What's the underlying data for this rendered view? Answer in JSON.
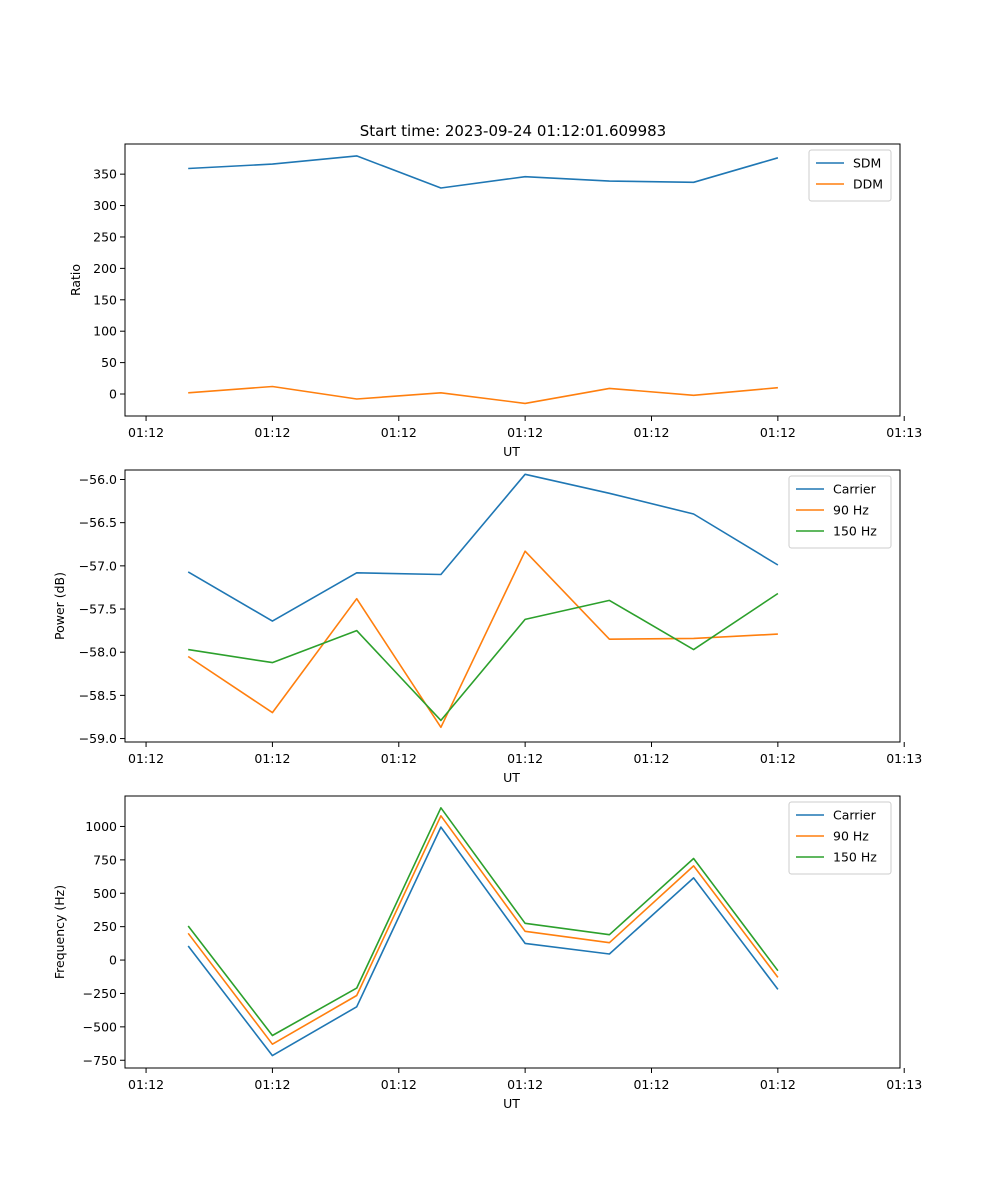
{
  "figure": {
    "title": "Start time: 2023-09-24 01:12:01.609983"
  },
  "chart_data": [
    {
      "type": "line",
      "ylabel": "Ratio",
      "xlabel": "UT",
      "x_tick_labels": [
        "01:12",
        "01:12",
        "01:12",
        "01:12",
        "01:12",
        "01:12",
        "01:13"
      ],
      "y_ticks": [
        0,
        50,
        100,
        150,
        200,
        250,
        300,
        350
      ],
      "ylim": [
        -35,
        398
      ],
      "legend_position": "upper right",
      "series": [
        {
          "name": "SDM",
          "color": "#1f77b4",
          "values": [
            359,
            366,
            379,
            328,
            346,
            339,
            337,
            376
          ]
        },
        {
          "name": "DDM",
          "color": "#ff7f0e",
          "values": [
            2,
            12,
            -8,
            2,
            -15,
            9,
            -2,
            10
          ]
        }
      ]
    },
    {
      "type": "line",
      "ylabel": "Power (dB)",
      "xlabel": "UT",
      "x_tick_labels": [
        "01:12",
        "01:12",
        "01:12",
        "01:12",
        "01:12",
        "01:12",
        "01:13"
      ],
      "y_ticks": [
        -59.0,
        -58.5,
        -58.0,
        -57.5,
        -57.0,
        -56.5,
        -56.0
      ],
      "y_tick_labels": [
        "−59.0",
        "−58.5",
        "−58.0",
        "−57.5",
        "−57.0",
        "−56.5",
        "−56.0"
      ],
      "ylim": [
        -59.04,
        -55.89
      ],
      "legend_position": "upper right",
      "series": [
        {
          "name": "Carrier",
          "color": "#1f77b4",
          "values": [
            -57.07,
            -57.64,
            -57.08,
            -57.1,
            -55.94,
            -56.16,
            -56.4,
            -56.99
          ]
        },
        {
          "name": "90 Hz",
          "color": "#ff7f0e",
          "values": [
            -58.05,
            -58.7,
            -57.38,
            -58.87,
            -56.83,
            -57.85,
            -57.84,
            -57.79
          ]
        },
        {
          "name": "150 Hz",
          "color": "#2ca02c",
          "values": [
            -57.97,
            -58.12,
            -57.75,
            -58.79,
            -57.62,
            -57.4,
            -57.97,
            -57.32
          ]
        }
      ]
    },
    {
      "type": "line",
      "ylabel": "Frequency (Hz)",
      "xlabel": "UT",
      "x_tick_labels": [
        "01:12",
        "01:12",
        "01:12",
        "01:12",
        "01:12",
        "01:12",
        "01:13"
      ],
      "y_ticks": [
        -750,
        -500,
        -250,
        0,
        250,
        500,
        750,
        1000
      ],
      "y_tick_labels": [
        "−750",
        "−500",
        "−250",
        "0",
        "250",
        "500",
        "750",
        "1000"
      ],
      "ylim": [
        -808,
        1228
      ],
      "legend_position": "upper right",
      "series": [
        {
          "name": "Carrier",
          "color": "#1f77b4",
          "values": [
            105,
            -715,
            -350,
            995,
            125,
            45,
            615,
            -220
          ]
        },
        {
          "name": "90 Hz",
          "color": "#ff7f0e",
          "values": [
            200,
            -630,
            -265,
            1080,
            215,
            130,
            705,
            -130
          ]
        },
        {
          "name": "150 Hz",
          "color": "#2ca02c",
          "values": [
            255,
            -565,
            -210,
            1140,
            275,
            190,
            760,
            -80
          ]
        }
      ]
    }
  ]
}
